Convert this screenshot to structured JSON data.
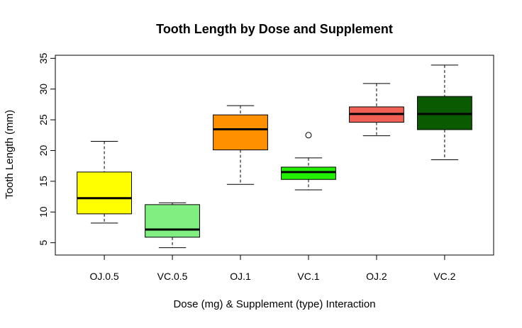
{
  "chart_data": {
    "type": "box",
    "title": "Tooth Length by Dose and Supplement",
    "xlabel": "Dose (mg) & Supplement (type) Interaction",
    "ylabel": "Tooth Length (mm)",
    "ylim": [
      3.0,
      35.5
    ],
    "yticks": [
      5,
      10,
      15,
      20,
      25,
      30,
      35
    ],
    "grid": false,
    "categories": [
      "OJ.0.5",
      "VC.0.5",
      "OJ.1",
      "VC.1",
      "OJ.2",
      "VC.2"
    ],
    "boxes": [
      {
        "label": "OJ.0.5",
        "whisker_low": 8.2,
        "q1": 9.7,
        "median": 12.25,
        "q3": 16.5,
        "whisker_high": 21.5,
        "outliers": [],
        "color": "#FFFF00"
      },
      {
        "label": "VC.0.5",
        "whisker_low": 4.2,
        "q1": 5.9,
        "median": 7.15,
        "q3": 11.2,
        "whisker_high": 11.5,
        "outliers": [],
        "color": "#80EE80"
      },
      {
        "label": "OJ.1",
        "whisker_low": 14.5,
        "q1": 20.1,
        "median": 23.45,
        "q3": 25.8,
        "whisker_high": 27.3,
        "outliers": [],
        "color": "#FF9000"
      },
      {
        "label": "VC.1",
        "whisker_low": 13.6,
        "q1": 15.3,
        "median": 16.5,
        "q3": 17.3,
        "whisker_high": 18.8,
        "outliers": [
          22.5
        ],
        "color": "#22EE00"
      },
      {
        "label": "OJ.2",
        "whisker_low": 22.4,
        "q1": 24.6,
        "median": 25.95,
        "q3": 27.1,
        "whisker_high": 30.9,
        "outliers": [],
        "color": "#F06055"
      },
      {
        "label": "VC.2",
        "whisker_low": 18.5,
        "q1": 23.4,
        "median": 25.95,
        "q3": 28.8,
        "whisker_high": 33.9,
        "outliers": [],
        "color": "#0A5A00"
      }
    ]
  }
}
